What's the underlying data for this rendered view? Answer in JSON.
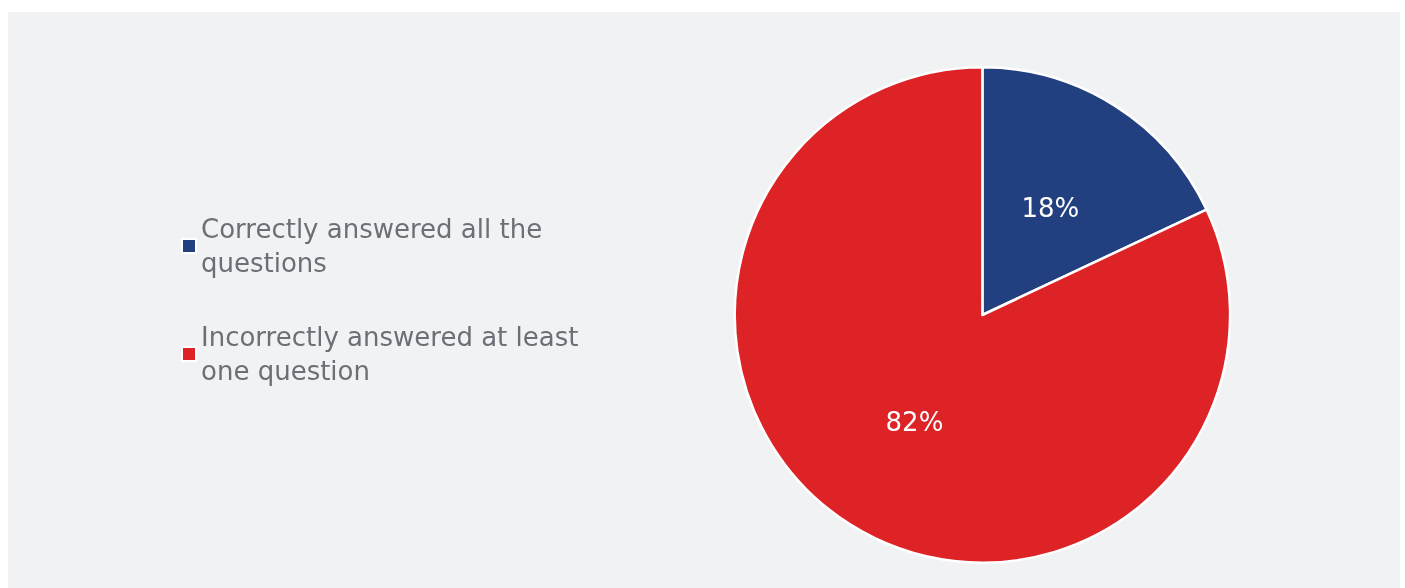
{
  "chart_data": {
    "type": "pie",
    "categories": [
      "Correctly answered all the questions",
      "Incorrectly answered at least one question"
    ],
    "values": [
      18,
      82
    ],
    "colors": [
      "#223f80",
      "#dd2326"
    ],
    "value_labels": [
      "18%",
      "82%"
    ],
    "legend": "left"
  }
}
